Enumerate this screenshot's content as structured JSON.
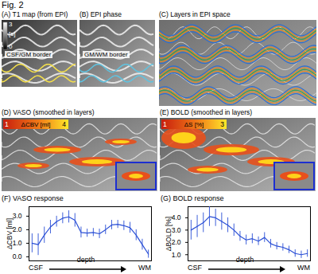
{
  "figure_label": "Fig. 2",
  "panels": [
    {
      "label": "(A)",
      "title": "T1 map (from EPI)",
      "colorbar": {
        "max": 3,
        "unit": "[s]",
        "min": 0
      },
      "overlay_label": "CSF/GM border"
    },
    {
      "label": "(B)",
      "title": "EPI phase",
      "overlay_label": "GM/WM border"
    },
    {
      "label": "(C)",
      "title": "Layers in EPI space"
    },
    {
      "label": "(D)",
      "title": "VASO (smoothed in layers)",
      "colorbar": {
        "min": 1,
        "unit": "ΔCBV [ml]",
        "max": 4
      }
    },
    {
      "label": "(E)",
      "title": "BOLD (smoothed in layers)",
      "colorbar": {
        "min": 1,
        "unit": "ΔS [%]",
        "max": 3
      }
    }
  ],
  "chart_data": [
    {
      "type": "line",
      "label": "(F)",
      "title": "VASO response",
      "ylabel": "ΔCBV [ml]",
      "xlabel": "depth",
      "x_end_labels": [
        "CSF",
        "WM"
      ],
      "x": [
        1,
        2,
        3,
        4,
        5,
        6,
        7,
        8,
        9,
        10,
        11,
        12,
        13,
        14,
        15,
        16,
        17,
        18,
        19,
        20
      ],
      "xlim": [
        0.5,
        20.5
      ],
      "ylim": [
        -0.3,
        3.7
      ],
      "yticks": [
        0,
        1,
        2,
        3
      ],
      "tick_labels": "y",
      "series": [
        {
          "name": "VASO",
          "color": "#2a4fd6",
          "values": [
            1.0,
            0.9,
            1.6,
            2.2,
            2.6,
            2.85,
            2.95,
            2.7,
            1.8,
            1.75,
            1.8,
            1.7,
            2.0,
            2.35,
            2.4,
            2.3,
            2.15,
            1.6,
            0.9,
            0.2
          ],
          "errors": [
            0.7,
            0.8,
            0.6,
            0.5,
            0.4,
            0.4,
            0.45,
            0.5,
            0.4,
            0.3,
            0.3,
            0.35,
            0.35,
            0.35,
            0.3,
            0.35,
            0.4,
            0.4,
            0.4,
            0.3
          ]
        }
      ]
    },
    {
      "type": "line",
      "label": "(G)",
      "title": "BOLD response",
      "ylabel": "ΔBOLD [%]",
      "xlabel": "depth",
      "x_end_labels": [
        "CSF",
        "WM"
      ],
      "x": [
        1,
        2,
        3,
        4,
        5,
        6,
        7,
        8,
        9,
        10,
        11,
        12,
        13,
        14,
        15,
        16,
        17,
        18,
        19,
        20
      ],
      "xlim": [
        0.5,
        20.5
      ],
      "ylim": [
        0.5,
        4.9
      ],
      "yticks": [
        1,
        2,
        3,
        4
      ],
      "tick_labels": "y",
      "series": [
        {
          "name": "BOLD",
          "color": "#2a4fd6",
          "values": [
            3.0,
            3.3,
            3.6,
            4.1,
            4.0,
            3.7,
            3.4,
            3.0,
            2.5,
            2.2,
            2.3,
            2.1,
            2.4,
            1.9,
            1.7,
            1.6,
            1.4,
            1.1,
            1.0,
            1.1
          ],
          "errors": [
            0.8,
            0.9,
            0.8,
            0.8,
            0.7,
            0.7,
            0.6,
            0.5,
            0.4,
            0.4,
            0.4,
            0.35,
            0.4,
            0.35,
            0.3,
            0.3,
            0.3,
            0.3,
            0.3,
            0.3
          ]
        }
      ]
    }
  ]
}
